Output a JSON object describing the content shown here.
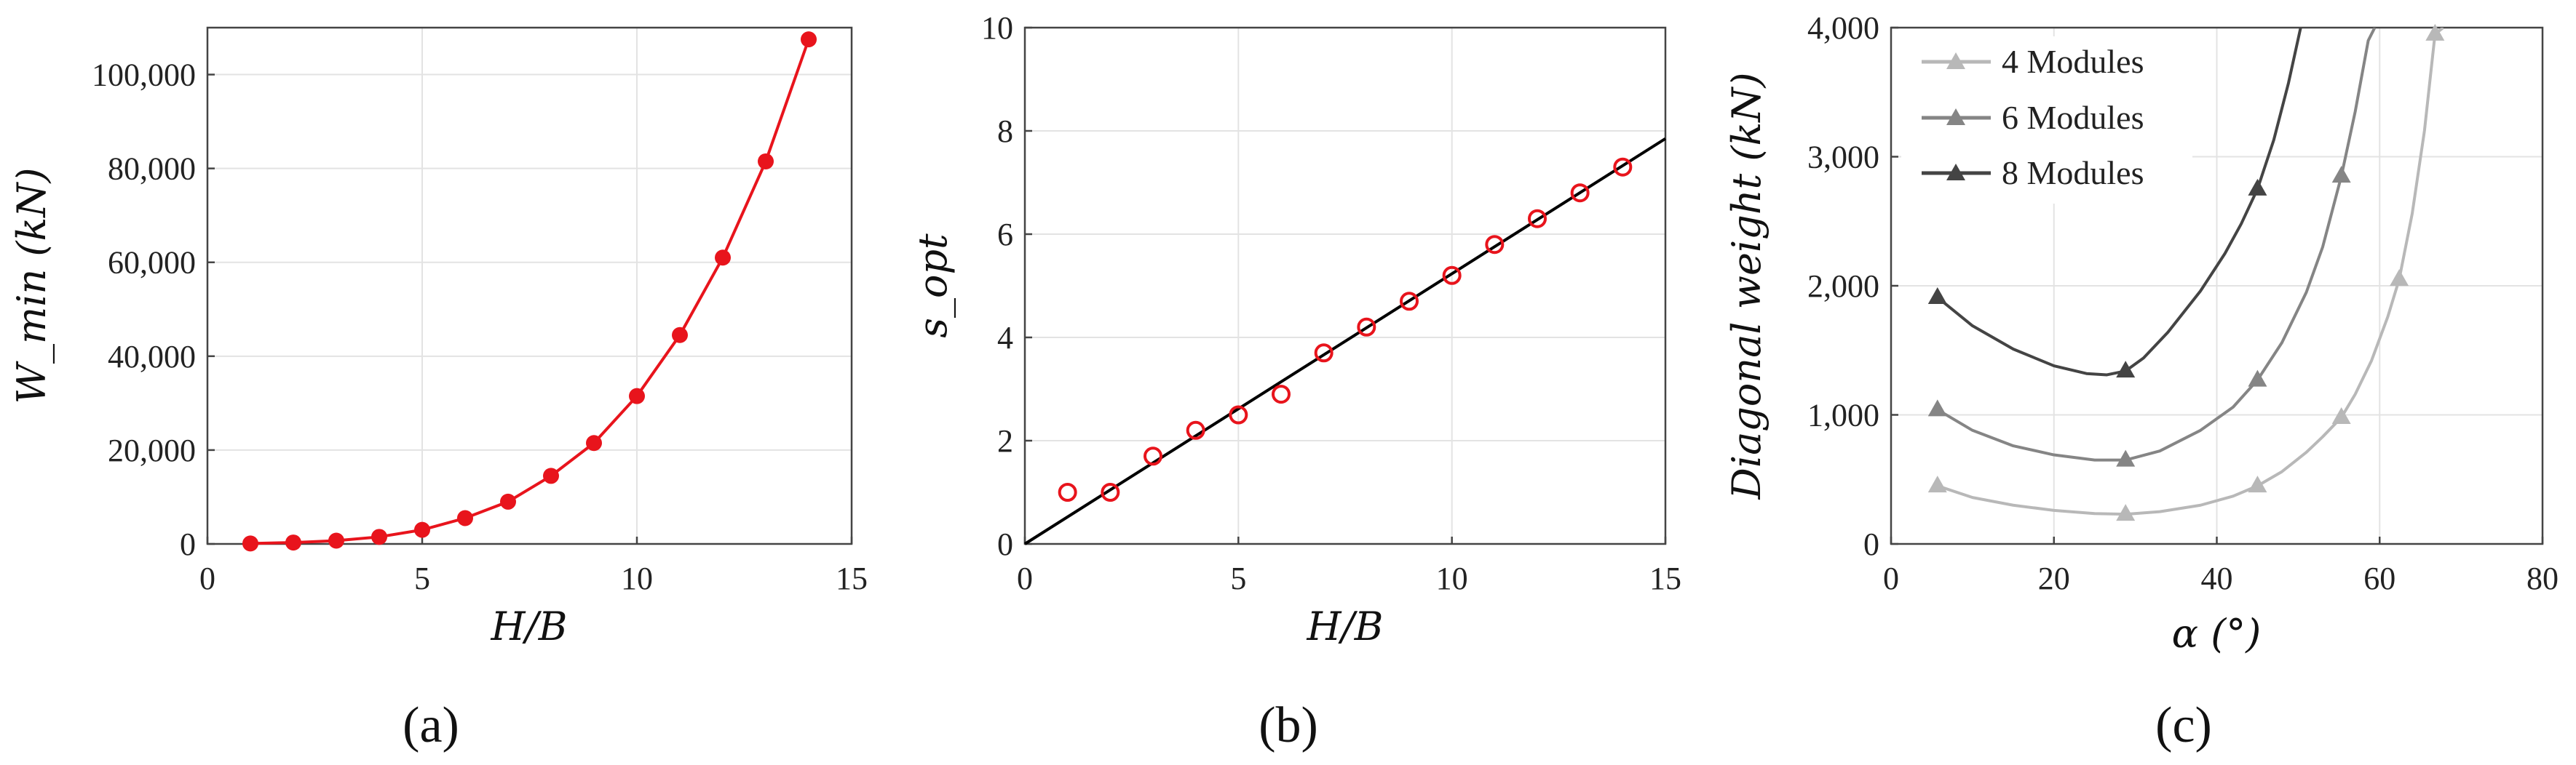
{
  "chart_data": [
    {
      "type": "line",
      "panel": "(a)",
      "xlabel": "H/B",
      "ylabel": "W_min (kN)",
      "xlim": [
        0,
        15
      ],
      "ylim": [
        0,
        110000
      ],
      "xticks": [
        0,
        5,
        10,
        15
      ],
      "yticks": [
        0,
        20000,
        40000,
        60000,
        80000,
        100000
      ],
      "xtick_labels": [
        "0",
        "5",
        "10",
        "15"
      ],
      "ytick_labels": [
        "0",
        "20,000",
        "40,000",
        "60,000",
        "80,000",
        "100,000"
      ],
      "grid": true,
      "series": [
        {
          "color": "#e8141c",
          "marker": "filled-circle",
          "x": [
            1,
            2,
            3,
            4,
            5,
            6,
            7,
            8,
            9,
            10,
            11,
            12,
            13,
            14
          ],
          "y": [
            100,
            300,
            700,
            1500,
            3000,
            5500,
            9000,
            14500,
            21500,
            31500,
            44500,
            61000,
            81500,
            107500
          ]
        }
      ]
    },
    {
      "type": "scatter",
      "panel": "(b)",
      "xlabel": "H/B",
      "ylabel": "s_opt",
      "xlim": [
        0,
        15
      ],
      "ylim": [
        0,
        10
      ],
      "xticks": [
        0,
        5,
        10,
        15
      ],
      "yticks": [
        0,
        2,
        4,
        6,
        8,
        10
      ],
      "xtick_labels": [
        "0",
        "5",
        "10",
        "15"
      ],
      "ytick_labels": [
        "0",
        "2",
        "4",
        "6",
        "8",
        "10"
      ],
      "grid": true,
      "series": [
        {
          "color": "#e8141c",
          "marker": "open-circle",
          "x": [
            1,
            2,
            3,
            4,
            5,
            6,
            7,
            8,
            9,
            10,
            11,
            12,
            13,
            14
          ],
          "y": [
            1.0,
            1.0,
            1.7,
            2.2,
            2.5,
            2.9,
            3.7,
            4.2,
            4.7,
            5.2,
            5.8,
            6.3,
            6.8,
            7.3
          ]
        }
      ],
      "fit_line": {
        "color": "#000000",
        "x": [
          0,
          15
        ],
        "y": [
          0,
          7.85
        ]
      }
    },
    {
      "type": "line",
      "panel": "(c)",
      "xlabel": "α (°)",
      "ylabel": "Diagonal weight (kN)",
      "xlim": [
        0,
        80
      ],
      "ylim": [
        0,
        4000
      ],
      "xticks": [
        0,
        20,
        40,
        60,
        80
      ],
      "yticks": [
        0,
        1000,
        2000,
        3000,
        4000
      ],
      "xtick_labels": [
        "0",
        "20",
        "40",
        "60",
        "80"
      ],
      "ytick_labels": [
        "0",
        "1,000",
        "2,000",
        "3,000",
        "4,000"
      ],
      "grid": true,
      "legend": "top-left",
      "series": [
        {
          "name": "4 Modules",
          "color": "#b8b8b8",
          "marker_x": [
            5.7,
            28.8,
            45.0,
            55.3,
            62.4,
            66.8
          ],
          "marker_y": [
            450,
            230,
            450,
            980,
            2050,
            3950
          ],
          "curve_x": [
            5.7,
            10,
            15,
            20,
            25,
            28.8,
            33,
            38,
            42,
            45,
            48,
            51,
            53,
            55.3,
            57,
            59,
            61,
            62.4,
            64,
            65.5,
            66.8,
            67.8
          ],
          "curve_y": [
            450,
            360,
            300,
            260,
            235,
            230,
            250,
            300,
            370,
            450,
            560,
            710,
            830,
            980,
            1160,
            1420,
            1760,
            2050,
            2560,
            3200,
            3950,
            4000
          ]
        },
        {
          "name": "6 Modules",
          "color": "#858585",
          "marker_x": [
            5.7,
            28.8,
            45.0,
            55.3
          ],
          "marker_y": [
            1040,
            650,
            1270,
            2850
          ],
          "curve_x": [
            5.7,
            10,
            15,
            20,
            25,
            28.8,
            33,
            38,
            42,
            45,
            48,
            51,
            53,
            55.3,
            57,
            58.6,
            59.4
          ],
          "curve_y": [
            1040,
            880,
            760,
            690,
            650,
            650,
            720,
            880,
            1060,
            1270,
            1560,
            1950,
            2300,
            2850,
            3350,
            3900,
            4000
          ]
        },
        {
          "name": "8 Modules",
          "color": "#444444",
          "marker_x": [
            5.7,
            28.8,
            45.0
          ],
          "marker_y": [
            1910,
            1340,
            2750
          ],
          "curve_x": [
            5.7,
            10,
            15,
            20,
            24,
            26.5,
            28.8,
            31,
            34,
            38,
            41,
            43,
            45,
            47,
            48.8,
            50.3
          ],
          "curve_y": [
            1910,
            1690,
            1510,
            1380,
            1320,
            1310,
            1340,
            1440,
            1640,
            1960,
            2250,
            2480,
            2750,
            3130,
            3570,
            4000
          ]
        }
      ]
    }
  ]
}
